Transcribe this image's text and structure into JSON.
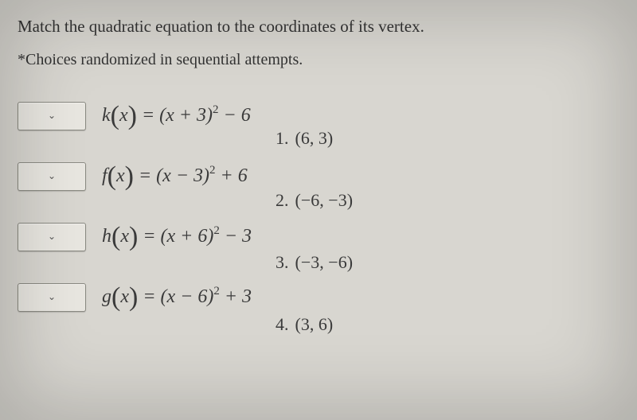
{
  "instruction": "Match the quadratic equation to the coordinates of its vertex.",
  "note": "*Choices randomized in sequential attempts.",
  "equations": [
    {
      "fn": "k",
      "var": "x",
      "body": "= (x + 3)",
      "exp": "2",
      "tail": " − 6"
    },
    {
      "fn": "f",
      "var": "x",
      "body": "= (x − 3)",
      "exp": "2",
      "tail": " + 6"
    },
    {
      "fn": "h",
      "var": "x",
      "body": "= (x + 6)",
      "exp": "2",
      "tail": " − 3"
    },
    {
      "fn": "g",
      "var": "x",
      "body": "= (x − 6)",
      "exp": "2",
      "tail": " + 3"
    }
  ],
  "choices": [
    {
      "n": "1.",
      "text": "(6, 3)"
    },
    {
      "n": "2.",
      "text": "(−6, −3)"
    },
    {
      "n": "3.",
      "text": "(−3, −6)"
    },
    {
      "n": "4.",
      "text": "(3, 6)"
    }
  ],
  "chevron": "⌄"
}
